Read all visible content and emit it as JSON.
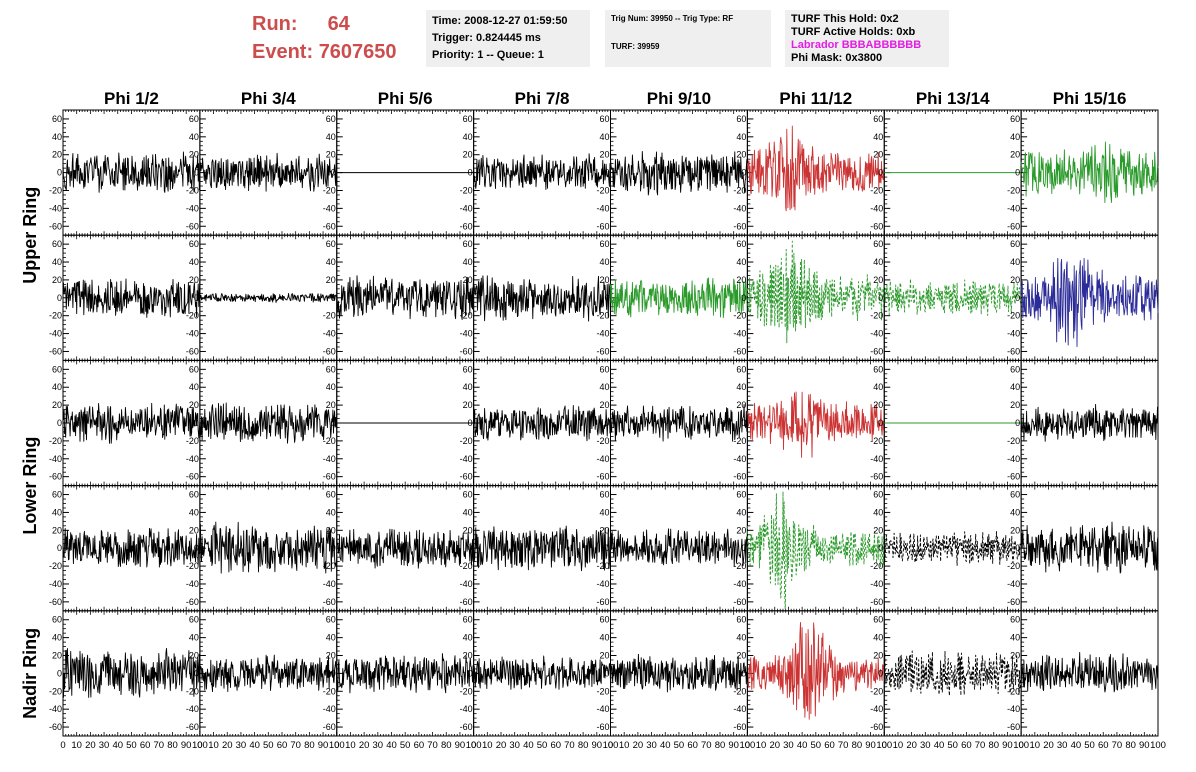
{
  "header": {
    "run_label": "Run:",
    "run_value": "64",
    "event_label": "Event:",
    "event_value": "7607650",
    "run_color": "#cd4d4d"
  },
  "info_time": {
    "time": "Time: 2008-12-27 01:59:50",
    "trigger": "Trigger: 0.824445 ms",
    "priority": "Priority: 1 -- Queue: 1"
  },
  "info_trig": {
    "trig": "Trig Num: 39950 -- Trig Type: RF",
    "turf": "TURF: 39959"
  },
  "info_turf": {
    "hold": "TURF This Hold: 0x2",
    "active": "TURF Active Holds: 0xb",
    "labrador": "Labrador BBBABBBBBB",
    "labrador_color": "#e41ce4",
    "mask": "Phi Mask: 0x3800"
  },
  "chart_data": {
    "type": "line",
    "columns": [
      "Phi 1/2",
      "Phi 3/4",
      "Phi 5/6",
      "Phi 7/8",
      "Phi 9/10",
      "Phi 11/12",
      "Phi 13/14",
      "Phi 15/16"
    ],
    "ring_labels": [
      {
        "label": "Upper Ring",
        "rows": [
          0,
          1
        ]
      },
      {
        "label": "Lower Ring",
        "rows": [
          2,
          3
        ]
      },
      {
        "label": "Nadir Ring",
        "rows": [
          4,
          4
        ]
      }
    ],
    "xlim": [
      0,
      100
    ],
    "x_ticks": [
      "0",
      "10",
      "20",
      "30",
      "40",
      "50",
      "60",
      "70",
      "80",
      "90",
      "100"
    ],
    "ylim": [
      -70,
      70
    ],
    "y_ticks": [
      "60",
      "40",
      "20",
      "0",
      "-20",
      "-40",
      "-60"
    ],
    "colors": {
      "black": "#000000",
      "red": "#cc3333",
      "green": "#2a9a2a",
      "blue": "#2c2c99"
    },
    "panels": [
      [
        {
          "color": "black",
          "amp": 18,
          "style": "solid"
        },
        {
          "color": "black",
          "amp": 17,
          "style": "solid"
        },
        {
          "color": "black",
          "amp": 0,
          "style": "flat"
        },
        {
          "color": "black",
          "amp": 16,
          "style": "solid"
        },
        {
          "color": "black",
          "amp": 19,
          "style": "solid"
        },
        {
          "color": "red",
          "amp": 20,
          "burst": 42,
          "burst_at": 30,
          "style": "solid"
        },
        {
          "color": "green",
          "amp": 0,
          "style": "flat"
        },
        {
          "color": "green",
          "amp": 20,
          "burst": 30,
          "burst_at": 60,
          "style": "solid"
        }
      ],
      [
        {
          "color": "black",
          "amp": 18,
          "style": "solid"
        },
        {
          "color": "black",
          "amp": 4,
          "style": "solid"
        },
        {
          "color": "black",
          "amp": 19,
          "style": "solid"
        },
        {
          "color": "black",
          "amp": 20,
          "style": "solid"
        },
        {
          "color": "green",
          "amp": 18,
          "style": "solid"
        },
        {
          "color": "green",
          "amp": 20,
          "burst": 50,
          "burst_at": 30,
          "style": "dashed"
        },
        {
          "color": "green",
          "amp": 16,
          "style": "dashed"
        },
        {
          "color": "blue",
          "amp": 22,
          "burst": 50,
          "burst_at": 35,
          "style": "solid"
        }
      ],
      [
        {
          "color": "black",
          "amp": 18,
          "style": "solid"
        },
        {
          "color": "black",
          "amp": 18,
          "style": "solid"
        },
        {
          "color": "black",
          "amp": 0,
          "style": "flat"
        },
        {
          "color": "black",
          "amp": 16,
          "style": "solid"
        },
        {
          "color": "black",
          "amp": 16,
          "style": "solid"
        },
        {
          "color": "red",
          "amp": 18,
          "burst": 35,
          "burst_at": 40,
          "style": "solid"
        },
        {
          "color": "green",
          "amp": 0,
          "style": "flat"
        },
        {
          "color": "black",
          "amp": 16,
          "style": "solid"
        }
      ],
      [
        {
          "color": "black",
          "amp": 17,
          "style": "solid"
        },
        {
          "color": "black",
          "amp": 22,
          "style": "solid"
        },
        {
          "color": "black",
          "amp": 18,
          "style": "solid"
        },
        {
          "color": "black",
          "amp": 20,
          "style": "solid"
        },
        {
          "color": "black",
          "amp": 17,
          "style": "solid"
        },
        {
          "color": "green",
          "amp": 18,
          "burst": 55,
          "burst_at": 25,
          "style": "dashed"
        },
        {
          "color": "black",
          "amp": 15,
          "style": "dashed"
        },
        {
          "color": "black",
          "amp": 22,
          "style": "solid"
        }
      ],
      [
        {
          "color": "black",
          "amp": 22,
          "style": "solid"
        },
        {
          "color": "black",
          "amp": 16,
          "style": "solid"
        },
        {
          "color": "black",
          "amp": 17,
          "style": "solid"
        },
        {
          "color": "black",
          "amp": 15,
          "style": "solid"
        },
        {
          "color": "black",
          "amp": 17,
          "style": "solid"
        },
        {
          "color": "red",
          "amp": 15,
          "burst": 55,
          "burst_at": 45,
          "style": "solid"
        },
        {
          "color": "black",
          "amp": 22,
          "style": "dashed"
        },
        {
          "color": "black",
          "amp": 18,
          "style": "solid"
        }
      ]
    ]
  }
}
